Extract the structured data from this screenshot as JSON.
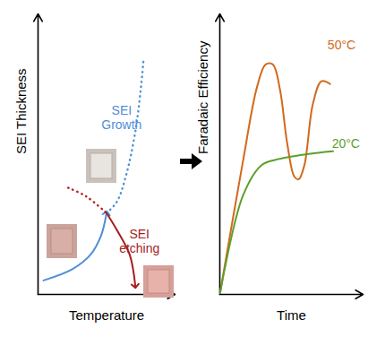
{
  "chart_data": [
    {
      "type": "line",
      "xlabel": "Temperature",
      "ylabel": "SEI Thickness",
      "xlim": [
        0,
        10
      ],
      "ylim": [
        0,
        10
      ],
      "tick_labels": false,
      "series": [
        {
          "color": "#4f8fd6",
          "line_style": "solid",
          "marker": "arrow",
          "x": [
            0.4,
            2.5,
            3.8,
            4.6,
            5.0
          ],
          "values": [
            0.5,
            0.9,
            1.4,
            2.1,
            2.9
          ]
        },
        {
          "color": "#4f8fd6",
          "line_style": "dotted",
          "x": [
            5.0,
            5.75,
            6.4,
            7.1,
            7.6,
            7.7
          ],
          "values": [
            2.9,
            3.3,
            4.2,
            5.8,
            7.8,
            8.4
          ]
        },
        {
          "color": "#b0201e",
          "line_style": "dotted",
          "x": [
            2.2,
            3.5,
            5.0
          ],
          "values": [
            3.8,
            3.5,
            2.9
          ]
        },
        {
          "color": "#a51d1c",
          "line_style": "solid",
          "marker": "arrow",
          "x": [
            5.0,
            5.75,
            6.7,
            7.1
          ],
          "values": [
            2.9,
            2.3,
            1.4,
            0.3
          ]
        }
      ],
      "annotations": [
        {
          "text": "SEI Growth",
          "x": 6.1,
          "y": 6.3,
          "color": "#4f8fd6"
        },
        {
          "text": "SEI etching",
          "x": 7.4,
          "y": 1.9,
          "color": "#a51d1c"
        }
      ]
    },
    {
      "type": "line",
      "xlabel": "Time",
      "ylabel": "Faradaic Efficiency",
      "xlim": [
        0,
        10
      ],
      "ylim": [
        0,
        10
      ],
      "tick_labels": false,
      "series": [
        {
          "color": "#d2691e",
          "line_style": "solid",
          "x": [
            0,
            1.6,
            2.6,
            3.2,
            3.7,
            4.2,
            4.7,
            5.2,
            5.5,
            5.9,
            6.5,
            7.1,
            7.7
          ],
          "values": [
            0,
            4.7,
            7.4,
            8.2,
            8.2,
            7.3,
            5.4,
            4.2,
            4.1,
            4.6,
            6.8,
            7.6,
            7.5
          ]
        },
        {
          "color": "#5ca02c",
          "line_style": "solid",
          "x": [
            0,
            1.6,
            2.9,
            3.9,
            6.1,
            7.9
          ],
          "values": [
            0,
            3.5,
            4.6,
            4.8,
            5.0,
            5.1
          ]
        }
      ],
      "annotations": [
        {
          "text": "50°C",
          "x": 8.5,
          "y": 8.9,
          "color": "#d2691e"
        },
        {
          "text": "20°C",
          "x": 8.8,
          "y": 5.4,
          "color": "#5ca02c"
        }
      ]
    }
  ]
}
